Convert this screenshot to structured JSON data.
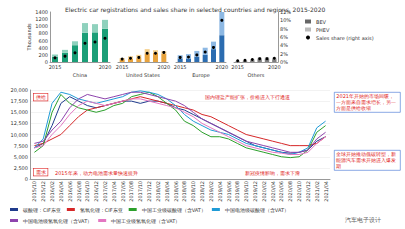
{
  "chart_data": [
    {
      "type": "bar",
      "title": "Electric car registrations and sales share in selected countries and regions, 2015-2020",
      "y_label": "Thousands",
      "stacked": true,
      "grid": false,
      "legend": "upper right",
      "categories": [
        "2015",
        null,
        null,
        null,
        null,
        "2020"
      ],
      "ylim": [
        0,
        1400
      ],
      "yticks": [
        0,
        200,
        400,
        600,
        800,
        1000,
        1200,
        1400
      ],
      "y2lim": [
        0,
        12
      ],
      "y2ticks": [
        {
          "value": 0,
          "label": "0%"
        },
        {
          "value": 2,
          "label": "2%"
        },
        {
          "value": 4,
          "label": "4%"
        },
        {
          "value": 6,
          "label": "6%"
        },
        {
          "value": 8,
          "label": "8%"
        },
        {
          "value": 10,
          "label": "10%"
        },
        {
          "value": 12,
          "label": "12%"
        }
      ],
      "series": [
        {
          "name": "BEV",
          "color": "#666666"
        },
        {
          "name": "PHEV",
          "color": "#bbbbbb"
        },
        {
          "name": "Sales share (right axis)",
          "type": "line",
          "axis": "y2",
          "color": "#000000",
          "marker": "circle",
          "line_style": "none"
        }
      ],
      "groups": [
        {
          "name": "China",
          "colors": [
            "#1b9e77",
            "#8fd1bd"
          ],
          "values": [
            [
              150,
              260,
              470,
              820,
              830,
              930
            ],
            [
              60,
              80,
              110,
              270,
              230,
              250
            ],
            [
              1.0,
              1.4,
              2.2,
              4.5,
              4.8,
              5.7
            ]
          ]
        },
        {
          "name": "United States",
          "colors": [
            "#e8a33d",
            "#f5d08c"
          ],
          "values": [
            [
              70,
              90,
              110,
              240,
              260,
              230
            ],
            [
              40,
              70,
              90,
              120,
              70,
              70
            ],
            [
              0.7,
              0.9,
              1.1,
              2.1,
              2.1,
              2.3
            ]
          ]
        },
        {
          "name": "Europe",
          "colors": [
            "#2b6cb0",
            "#8db8e3"
          ],
          "values": [
            [
              100,
              100,
              150,
              200,
              360,
              750
            ],
            [
              90,
              120,
              160,
              200,
              210,
              650
            ],
            [
              1.1,
              1.2,
              1.7,
              2.4,
              3.5,
              10
            ]
          ]
        },
        {
          "name": "Others",
          "colors": [
            "#7f7f7f",
            "#c8c8c8"
          ],
          "values": [
            [
              20,
              30,
              50,
              80,
              90,
              80
            ],
            [
              10,
              20,
              30,
              40,
              40,
              40
            ],
            [
              0.3,
              0.4,
              0.6,
              0.8,
              0.8,
              0.9
            ]
          ]
        }
      ]
    },
    {
      "type": "line",
      "grid": true,
      "legend": "bottom",
      "categories": [
        "2015/10",
        "2015/12",
        "2016/02",
        "2016/04",
        "2016/06",
        "2016/08",
        "2016/10",
        "2016/12",
        "2017/02",
        "2017/04",
        "2017/06",
        "2017/08",
        "2017/10",
        "2017/12",
        "2018/02",
        "2018/04",
        "2018/06",
        "2018/08",
        "2018/10",
        "2018/12",
        "2019/02",
        "2019/04",
        "2019/06",
        "2019/08",
        "2019/10",
        "2019/12",
        "2020/02",
        "2020/04",
        "2020/06",
        "2020/08",
        "2020/10",
        "2020/12",
        "2021/02",
        "2021/04"
      ],
      "ylim": [
        0,
        20000
      ],
      "yticks": [
        0,
        {
          "value": 2500,
          "label": "2,500"
        },
        {
          "value": 5000,
          "label": "5,000"
        },
        {
          "value": 7500,
          "label": "7,500"
        },
        {
          "value": 10000,
          "label": "10,000"
        },
        {
          "value": 12500,
          "label": "12,500"
        },
        {
          "value": 15000,
          "label": "15,000"
        },
        {
          "value": 17500,
          "label": "17,500"
        },
        {
          "value": 20000,
          "label": "20,000"
        }
      ],
      "series": [
        {
          "name": "碳酸锂：CIF东亚",
          "color": "#1f3b8c",
          "values": [
            7000,
            8000,
            12000,
            17000,
            18500,
            17500,
            16500,
            16000,
            16500,
            17000,
            17500,
            17500,
            17000,
            17500,
            17500,
            17000,
            16000,
            15500,
            14500,
            13500,
            12500,
            11500,
            10500,
            9500,
            8500,
            7500,
            7000,
            6500,
            6000,
            5800,
            6000,
            6500,
            8500,
            9500
          ]
        },
        {
          "name": "氢氧化锂：CIF东亚",
          "color": "#d62728",
          "values": [
            7500,
            8000,
            9000,
            10000,
            12000,
            14000,
            15500,
            16000,
            16500,
            17000,
            17500,
            18000,
            18500,
            18000,
            17500,
            17000,
            16500,
            16000,
            15500,
            14500,
            14000,
            13000,
            12000,
            11000,
            10000,
            9500,
            9000,
            8500,
            8000,
            7500,
            7500,
            7500,
            8000,
            9500
          ]
        },
        {
          "name": "中国工业级碳酸锂（含VAT）",
          "color": "#2ca02c",
          "values": [
            6000,
            7500,
            15000,
            19000,
            17000,
            16000,
            15500,
            15000,
            15500,
            16500,
            17000,
            18500,
            19000,
            19500,
            18500,
            17000,
            15500,
            13000,
            12000,
            10500,
            9500,
            9500,
            9000,
            8000,
            7000,
            6500,
            6000,
            5500,
            5000,
            4800,
            5000,
            6500,
            10500,
            12000
          ]
        },
        {
          "name": "中国电池级碳酸锂（含VAT）",
          "color": "#1f9bd6",
          "values": [
            7000,
            9000,
            17000,
            19500,
            19000,
            18000,
            17500,
            17000,
            17500,
            18000,
            18500,
            19500,
            19800,
            19500,
            19000,
            18000,
            16500,
            14500,
            13000,
            12000,
            11000,
            10500,
            10000,
            9000,
            8000,
            7500,
            7000,
            6500,
            6000,
            5500,
            6000,
            7000,
            11500,
            13000
          ]
        },
        {
          "name": "中国电池级氢氧化锂（含VAT）",
          "color": "#8e44ad",
          "values": [
            8000,
            8500,
            11000,
            13000,
            16000,
            18000,
            19000,
            18500,
            18000,
            18500,
            19000,
            19500,
            19500,
            19000,
            18500,
            18000,
            17500,
            16500,
            15000,
            13500,
            12500,
            11500,
            10500,
            9500,
            8500,
            8000,
            7500,
            7000,
            6500,
            6000,
            6000,
            6500,
            9000,
            10500
          ]
        },
        {
          "name": "中国工业级氢氧化锂（含VAT）",
          "color": "#e377c2",
          "values": [
            7000,
            7500,
            10000,
            12000,
            14500,
            16500,
            17500,
            17000,
            16500,
            17000,
            17500,
            18000,
            18000,
            17500,
            17000,
            16500,
            16000,
            15000,
            14000,
            12500,
            11500,
            10500,
            9500,
            8500,
            7500,
            7000,
            6500,
            6000,
            5800,
            5500,
            5500,
            6000,
            8000,
            9500
          ]
        }
      ],
      "annotations": [
        "国内锂盐产能扩张，价格进入下行通道",
        "新冠疫情影响，需求下滑",
        "2015年来，动力电池需求量快速提升"
      ],
      "boxed_labels": [
        "供给",
        "需求"
      ],
      "side_notes": [
        "2021年开始的市场回暖，一方面来自需求增长，另一方面是供给收缩",
        "全球开始推动低碳转型，新能源汽车需求开始进入爆发期"
      ],
      "watermark": "汽车电子设计"
    }
  ]
}
